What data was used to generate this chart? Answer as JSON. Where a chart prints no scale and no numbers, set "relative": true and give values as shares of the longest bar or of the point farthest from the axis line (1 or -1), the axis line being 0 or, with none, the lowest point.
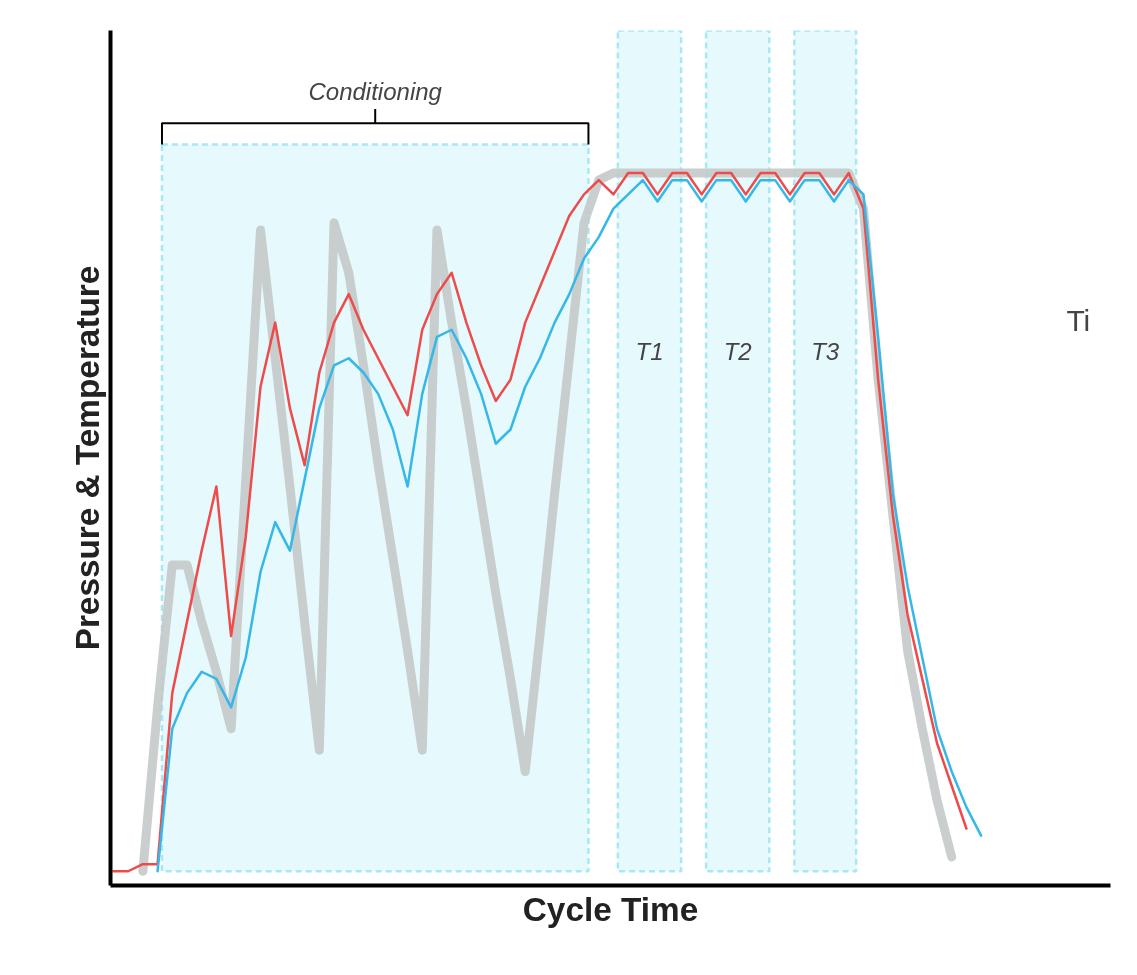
{
  "chart_data": {
    "type": "line",
    "xlabel": "Cycle Time",
    "ylabel": "Pressure & Temperature",
    "relative": true,
    "tick_labels": false,
    "line_style": "solid",
    "categories": [
      null,
      null,
      null,
      null,
      null,
      null,
      null,
      null,
      null,
      null,
      null,
      null,
      null,
      null,
      null,
      null,
      null,
      null,
      null,
      null,
      null,
      null,
      null,
      null,
      null,
      null,
      null,
      null,
      null,
      null,
      null,
      null,
      null,
      null,
      null,
      null,
      null,
      null,
      null,
      null,
      null,
      null,
      null,
      null,
      null,
      null,
      null,
      null,
      null,
      null,
      null,
      null,
      null,
      null,
      null,
      null,
      null,
      null,
      null,
      null
    ],
    "series": [
      {
        "color": "#c4c9c9",
        "values": [
          null,
          null,
          0.02,
          0.25,
          0.45,
          0.45,
          0.37,
          0.3,
          0.22,
          0.57,
          0.92,
          0.74,
          0.56,
          0.37,
          0.19,
          0.93,
          0.86,
          0.73,
          0.59,
          0.46,
          0.33,
          0.19,
          0.92,
          0.79,
          0.67,
          0.54,
          0.41,
          0.29,
          0.16,
          0.35,
          0.55,
          0.74,
          0.93,
          0.99,
          1.0,
          1.0,
          1.0,
          1.0,
          1.0,
          1.0,
          1.0,
          1.0,
          1.0,
          1.0,
          1.0,
          1.0,
          1.0,
          1.0,
          1.0,
          1.0,
          1.0,
          0.95,
          0.71,
          0.52,
          0.33,
          0.22,
          0.12,
          0.04,
          null,
          null
        ]
      },
      {
        "color": "#ee4b4b",
        "values": [
          0.02,
          0.02,
          0.03,
          0.03,
          0.27,
          0.37,
          0.47,
          0.56,
          0.35,
          0.49,
          0.7,
          0.79,
          0.67,
          0.59,
          0.72,
          0.79,
          0.83,
          0.78,
          0.74,
          0.7,
          0.66,
          0.78,
          0.83,
          0.86,
          0.79,
          0.73,
          0.68,
          0.71,
          0.79,
          0.84,
          0.89,
          0.94,
          0.97,
          0.99,
          0.97,
          1.0,
          1.0,
          0.97,
          1.0,
          1.0,
          0.97,
          1.0,
          1.0,
          0.97,
          1.0,
          1.0,
          0.97,
          1.0,
          1.0,
          0.97,
          1.0,
          0.95,
          0.71,
          0.52,
          0.38,
          0.29,
          0.2,
          0.14,
          0.08,
          null
        ]
      },
      {
        "color": "#35b8e8",
        "values": [
          null,
          null,
          null,
          0.02,
          0.22,
          0.27,
          0.3,
          0.29,
          0.25,
          0.32,
          0.44,
          0.51,
          0.47,
          0.57,
          0.67,
          0.73,
          0.74,
          0.72,
          0.69,
          0.64,
          0.56,
          0.69,
          0.77,
          0.78,
          0.74,
          0.69,
          0.62,
          0.64,
          0.7,
          0.74,
          0.79,
          0.83,
          0.88,
          0.91,
          0.95,
          0.97,
          0.99,
          0.96,
          0.99,
          0.99,
          0.96,
          0.99,
          0.99,
          0.96,
          0.99,
          0.99,
          0.96,
          0.99,
          0.99,
          0.96,
          0.99,
          0.97,
          0.77,
          0.55,
          0.42,
          0.32,
          0.22,
          0.16,
          0.11,
          0.07
        ]
      }
    ],
    "annotations": [
      "Conditioning",
      "T1",
      "T2",
      "T3",
      "Ti"
    ]
  }
}
